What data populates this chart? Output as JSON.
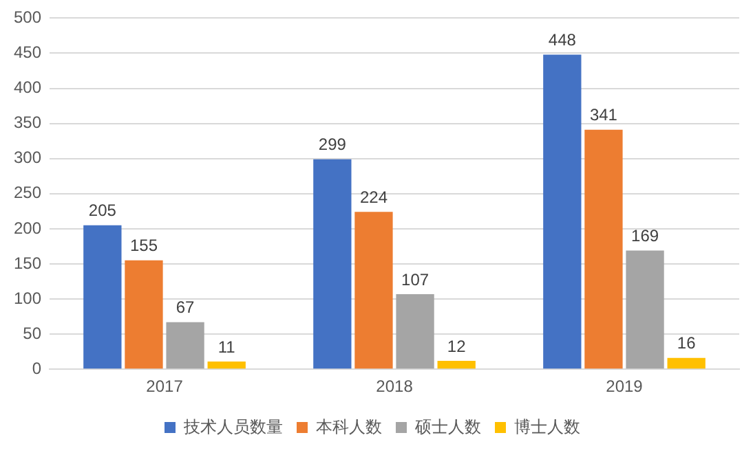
{
  "chart_data": {
    "type": "bar",
    "categories": [
      "2017",
      "2018",
      "2019"
    ],
    "series": [
      {
        "name": "技术人员数量",
        "color": "#4472c4",
        "values": [
          205,
          299,
          448
        ]
      },
      {
        "name": "本科人数",
        "color": "#ed7d31",
        "values": [
          155,
          224,
          341
        ]
      },
      {
        "name": "硕士人数",
        "color": "#a5a5a5",
        "values": [
          67,
          107,
          169
        ]
      },
      {
        "name": "博士人数",
        "color": "#ffc000",
        "values": [
          11,
          12,
          16
        ]
      }
    ],
    "ylim": [
      0,
      500
    ],
    "yticks": [
      0,
      50,
      100,
      150,
      200,
      250,
      300,
      350,
      400,
      450,
      500
    ],
    "grid": "y",
    "legend": "bottom",
    "data_labels": true
  }
}
